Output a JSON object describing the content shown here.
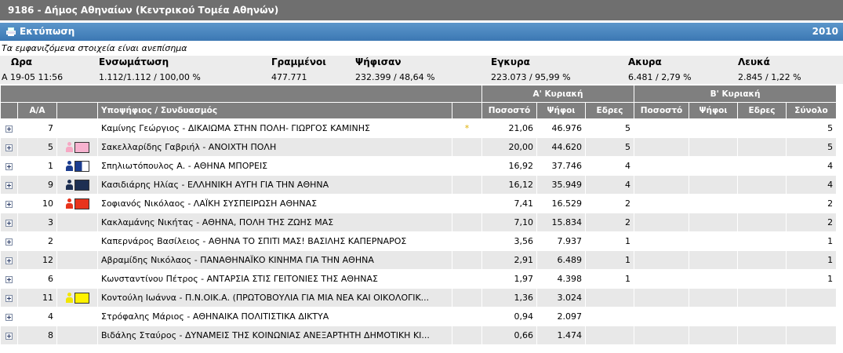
{
  "header": {
    "title": "9186 - Δήμος Αθηναίων (Κεντρικού Τομέα Αθηνών)"
  },
  "toolbar": {
    "print_label": "Εκτύπωση",
    "year": "2010"
  },
  "note": "Τα εμφανιζόμενα στοιχεία είναι ανεπίσημα",
  "summary": {
    "headers": [
      "Ωρα",
      "Ενσωμάτωση",
      "Γραμμένοι",
      "Ψήφισαν",
      "Εγκυρα",
      "Ακυρα",
      "Λευκά"
    ],
    "values": [
      "Α 19-05 11:56",
      "1.112/1.112 / 100,00 %",
      "477.771",
      "232.399 / 48,64 %",
      "223.073 / 95,99 %",
      "6.481 / 2,79 %",
      "2.845 / 1,22 %"
    ]
  },
  "table": {
    "group_a": "Α' Κυριακή",
    "group_b": "Β' Κυριακή",
    "col_aa": "Α/Α",
    "col_candidate": "Υποψήφιος / Συνδυασμός",
    "col_pct": "Ποσοστό",
    "col_votes": "Ψήφοι",
    "col_seats": "Εδρες",
    "col_total": "Σύνολο",
    "rows": [
      {
        "aa": "7",
        "logo": "none",
        "candidate": "Καμίνης Γεώργιος - ΔΙΚΑΙΩΜΑ ΣΤΗΝ ΠΟΛΗ- ΓΙΩΡΓΟΣ ΚΑΜΙΝΗΣ",
        "star": "*",
        "pct": "21,06",
        "votes": "46.976",
        "seats": "5",
        "total": "5"
      },
      {
        "aa": "5",
        "logo": "pink",
        "candidate": "Σακελλαρίδης Γαβριήλ - ΑΝΟΙΧΤΗ ΠΟΛΗ",
        "star": "",
        "pct": "20,00",
        "votes": "44.620",
        "seats": "5",
        "total": "5"
      },
      {
        "aa": "1",
        "logo": "blue-white",
        "candidate": "Σπηλιωτόπουλος Α. - ΑΘΗΝΑ ΜΠΟΡΕΙΣ",
        "star": "",
        "pct": "16,92",
        "votes": "37.746",
        "seats": "4",
        "total": "4"
      },
      {
        "aa": "9",
        "logo": "navy",
        "candidate": "Κασιδιάρης Ηλίας - ΕΛΛΗΝΙΚΗ ΑΥΓΗ ΓΙΑ ΤΗΝ ΑΘΗΝΑ",
        "star": "",
        "pct": "16,12",
        "votes": "35.949",
        "seats": "4",
        "total": "4"
      },
      {
        "aa": "10",
        "logo": "red",
        "candidate": "Σοφιανός Νικόλαος - ΛΑΪΚΗ ΣΥΣΠΕΙΡΩΣΗ ΑΘΗΝΑΣ",
        "star": "",
        "pct": "7,41",
        "votes": "16.529",
        "seats": "2",
        "total": "2"
      },
      {
        "aa": "3",
        "logo": "none",
        "candidate": "Κακλαμάνης Νικήτας - ΑΘΗΝΑ, ΠΟΛΗ ΤΗΣ ΖΩΗΣ ΜΑΣ",
        "star": "",
        "pct": "7,10",
        "votes": "15.834",
        "seats": "2",
        "total": "2"
      },
      {
        "aa": "2",
        "logo": "none",
        "candidate": "Καπερνάρος Βασίλειος - ΑΘΗΝΑ ΤΟ ΣΠΙΤΙ ΜΑΣ! ΒΑΣΙΛΗΣ ΚΑΠΕΡΝΑΡΟΣ",
        "star": "",
        "pct": "3,56",
        "votes": "7.937",
        "seats": "1",
        "total": "1"
      },
      {
        "aa": "12",
        "logo": "none",
        "candidate": "Αβραμίδης Νικόλαος - ΠΑΝΑΘΗΝΑΪΚΟ ΚΙΝΗΜΑ ΓΙΑ ΤΗΝ ΑΘΗΝΑ",
        "star": "",
        "pct": "2,91",
        "votes": "6.489",
        "seats": "1",
        "total": "1"
      },
      {
        "aa": "6",
        "logo": "none",
        "candidate": "Κωνσταντίνου Πέτρος - ΑΝΤΑΡΣΙΑ ΣΤΙΣ ΓΕΙΤΟΝΙΕΣ ΤΗΣ ΑΘΗΝΑΣ",
        "star": "",
        "pct": "1,97",
        "votes": "4.398",
        "seats": "1",
        "total": "1"
      },
      {
        "aa": "11",
        "logo": "yellow",
        "candidate": "Κοντούλη Ιωάννα - Π.Ν.ΟΙΚ.Α. (ΠΡΩΤΟΒΟΥΛΙΑ ΓΙΑ ΜΙΑ ΝΕΑ ΚΑΙ ΟΙΚΟΛΟΓΙΚ...",
        "star": "",
        "pct": "1,36",
        "votes": "3.024",
        "seats": "",
        "total": ""
      },
      {
        "aa": "4",
        "logo": "none",
        "candidate": "Στρόφαλης Μάριος - ΑΘΗΝΑΙΚΑ ΠΟΛΙΤΙΣΤΙΚΑ ΔΙΚΤΥΑ",
        "star": "",
        "pct": "0,94",
        "votes": "2.097",
        "seats": "",
        "total": ""
      },
      {
        "aa": "8",
        "logo": "none",
        "candidate": "Βιδάλης Σταύρος - ΔΥΝΑΜΕΙΣ ΤΗΣ ΚΟΙΝΩΝΙΑΣ ΑΝΕΞΑΡΤΗΤΗ ΔΗΜΟΤΙΚΗ ΚΙ...",
        "star": "",
        "pct": "0,66",
        "votes": "1.474",
        "seats": "",
        "total": ""
      }
    ]
  },
  "colors": {
    "title_bg": "#6f6f6f",
    "print_bar": "#3c78b3",
    "header_bg": "#7f7f7f",
    "row_alt": "#e8e8e8"
  }
}
